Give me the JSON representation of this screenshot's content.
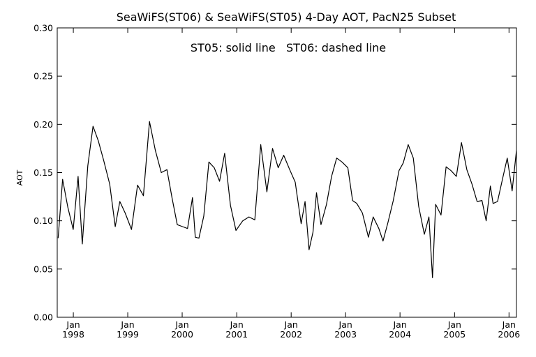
{
  "chart_data": {
    "type": "line",
    "title": "SeaWiFS(ST06) & SeaWiFS(ST05) 4-Day AOT, PacN25 Subset",
    "annotation": "ST05: solid line   ST06: dashed line",
    "xlabel": "",
    "ylabel": "AOT",
    "xlim": [
      "1997-09-15",
      "2006-02-20"
    ],
    "ylim": [
      0.0,
      0.3
    ],
    "yticks": [
      0.0,
      0.05,
      0.1,
      0.15,
      0.2,
      0.25,
      0.3
    ],
    "ytick_labels": [
      "0.00",
      "0.05",
      "0.10",
      "0.15",
      "0.20",
      "0.25",
      "0.30"
    ],
    "xticks": [
      {
        "date": "1998-01-01",
        "month": "Jan",
        "year": "1998"
      },
      {
        "date": "1999-01-01",
        "month": "Jan",
        "year": "1999"
      },
      {
        "date": "2000-01-01",
        "month": "Jan",
        "year": "2000"
      },
      {
        "date": "2001-01-01",
        "month": "Jan",
        "year": "2001"
      },
      {
        "date": "2002-01-01",
        "month": "Jan",
        "year": "2002"
      },
      {
        "date": "2003-01-01",
        "month": "Jan",
        "year": "2003"
      },
      {
        "date": "2004-01-01",
        "month": "Jan",
        "year": "2004"
      },
      {
        "date": "2005-01-01",
        "month": "Jan",
        "year": "2005"
      },
      {
        "date": "2006-01-01",
        "month": "Jan",
        "year": "2006"
      }
    ],
    "grid": false,
    "series": [
      {
        "name": "ST05",
        "style": "solid",
        "color": "#000000",
        "points": [
          [
            "1997-09-21",
            0.082
          ],
          [
            "1997-10-21",
            0.143
          ],
          [
            "1997-11-25",
            0.114
          ],
          [
            "1997-12-31",
            0.091
          ],
          [
            "1998-02-02",
            0.146
          ],
          [
            "1998-03-02",
            0.076
          ],
          [
            "1998-04-08",
            0.157
          ],
          [
            "1998-05-13",
            0.198
          ],
          [
            "1998-06-17",
            0.183
          ],
          [
            "1998-07-23",
            0.163
          ],
          [
            "1998-09-02",
            0.138
          ],
          [
            "1998-10-09",
            0.094
          ],
          [
            "1998-11-09",
            0.12
          ],
          [
            "1998-12-15",
            0.108
          ],
          [
            "1999-01-26",
            0.091
          ],
          [
            "1999-03-08",
            0.137
          ],
          [
            "1999-04-16",
            0.126
          ],
          [
            "1999-05-27",
            0.203
          ],
          [
            "1999-07-05",
            0.173
          ],
          [
            "1999-08-14",
            0.15
          ],
          [
            "1999-09-21",
            0.153
          ],
          [
            "1999-10-26",
            0.123
          ],
          [
            "1999-11-29",
            0.096
          ],
          [
            "2000-01-03",
            0.094
          ],
          [
            "2000-02-06",
            0.092
          ],
          [
            "2000-03-10",
            0.124
          ],
          [
            "2000-03-29",
            0.083
          ],
          [
            "2000-04-22",
            0.082
          ],
          [
            "2000-05-25",
            0.105
          ],
          [
            "2000-06-28",
            0.161
          ],
          [
            "2000-08-03",
            0.155
          ],
          [
            "2000-09-08",
            0.141
          ],
          [
            "2000-10-12",
            0.17
          ],
          [
            "2000-11-20",
            0.116
          ],
          [
            "2000-12-27",
            0.09
          ],
          [
            "2001-02-10",
            0.1
          ],
          [
            "2001-03-24",
            0.104
          ],
          [
            "2001-05-02",
            0.101
          ],
          [
            "2001-06-11",
            0.179
          ],
          [
            "2001-07-22",
            0.13
          ],
          [
            "2001-08-29",
            0.175
          ],
          [
            "2001-10-06",
            0.155
          ],
          [
            "2001-11-12",
            0.168
          ],
          [
            "2001-12-22",
            0.153
          ],
          [
            "2002-01-28",
            0.14
          ],
          [
            "2002-03-09",
            0.097
          ],
          [
            "2002-04-04",
            0.12
          ],
          [
            "2002-05-01",
            0.07
          ],
          [
            "2002-05-27",
            0.088
          ],
          [
            "2002-06-20",
            0.129
          ],
          [
            "2002-07-20",
            0.096
          ],
          [
            "2002-08-26",
            0.117
          ],
          [
            "2002-09-29",
            0.146
          ],
          [
            "2002-11-02",
            0.165
          ],
          [
            "2002-12-08",
            0.161
          ],
          [
            "2003-01-16",
            0.155
          ],
          [
            "2003-02-17",
            0.121
          ],
          [
            "2003-03-17",
            0.118
          ],
          [
            "2003-04-24",
            0.108
          ],
          [
            "2003-06-03",
            0.083
          ],
          [
            "2003-07-05",
            0.104
          ],
          [
            "2003-08-12",
            0.092
          ],
          [
            "2003-09-09",
            0.079
          ],
          [
            "2003-10-12",
            0.098
          ],
          [
            "2003-11-17",
            0.121
          ],
          [
            "2003-12-25",
            0.152
          ],
          [
            "2004-01-23",
            0.16
          ],
          [
            "2004-02-25",
            0.179
          ],
          [
            "2004-03-30",
            0.165
          ],
          [
            "2004-05-05",
            0.115
          ],
          [
            "2004-06-12",
            0.086
          ],
          [
            "2004-07-13",
            0.104
          ],
          [
            "2004-08-06",
            0.041
          ],
          [
            "2004-08-27",
            0.117
          ],
          [
            "2004-10-02",
            0.106
          ],
          [
            "2004-11-05",
            0.156
          ],
          [
            "2004-12-08",
            0.152
          ],
          [
            "2005-01-13",
            0.146
          ],
          [
            "2005-02-16",
            0.181
          ],
          [
            "2005-03-24",
            0.153
          ],
          [
            "2005-04-28",
            0.138
          ],
          [
            "2005-06-01",
            0.12
          ],
          [
            "2005-07-04",
            0.121
          ],
          [
            "2005-08-01",
            0.1
          ],
          [
            "2005-08-29",
            0.136
          ],
          [
            "2005-09-16",
            0.118
          ],
          [
            "2005-10-16",
            0.12
          ],
          [
            "2005-11-18",
            0.143
          ],
          [
            "2005-12-20",
            0.165
          ],
          [
            "2006-01-22",
            0.131
          ],
          [
            "2006-02-20",
            0.173
          ]
        ]
      },
      {
        "name": "ST06",
        "style": "dashed",
        "color": "#000000",
        "points": []
      }
    ]
  }
}
